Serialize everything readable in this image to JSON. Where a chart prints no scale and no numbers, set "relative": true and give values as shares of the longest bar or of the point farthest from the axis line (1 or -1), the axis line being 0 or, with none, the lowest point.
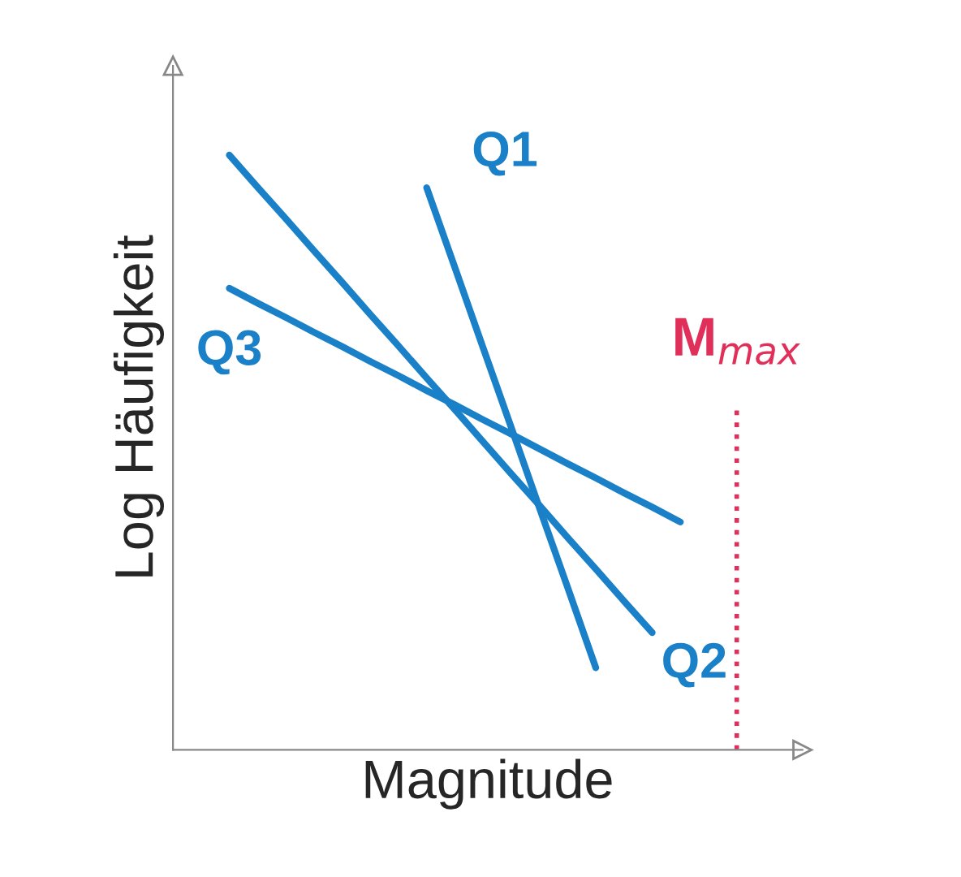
{
  "chart_data": {
    "type": "line",
    "relative": true,
    "xlabel": "Magnitude",
    "ylabel": "Log Häufigkeit",
    "legend": false,
    "tick_labels": false,
    "marker": "none",
    "line_style": "solid",
    "categories": [
      null,
      null,
      null,
      null,
      null,
      null,
      null,
      null,
      null,
      null,
      null,
      null,
      null,
      null,
      null,
      null,
      null,
      null,
      null,
      null,
      null,
      null,
      null
    ],
    "series": [
      {
        "name": "Q1",
        "color": "#1a80c8",
        "values": [
          null,
          null,
          null,
          null,
          null,
          null,
          null,
          null,
          null,
          0.945,
          0.811,
          0.676,
          0.542,
          0.407,
          0.273,
          0.138,
          null,
          null,
          null,
          null,
          null,
          null,
          null
        ]
      },
      {
        "name": "Q2",
        "color": "#1a80c8",
        "values": [
          null,
          null,
          1.0,
          0.946,
          0.893,
          0.839,
          0.786,
          0.732,
          0.679,
          0.625,
          0.572,
          0.518,
          0.464,
          0.411,
          0.357,
          0.304,
          0.25,
          0.197,
          null,
          null,
          null,
          null,
          null
        ]
      },
      {
        "name": "Q3",
        "color": "#1a80c8",
        "values": [
          null,
          null,
          0.776,
          0.751,
          0.727,
          0.702,
          0.678,
          0.653,
          0.629,
          0.604,
          0.58,
          0.555,
          0.531,
          0.506,
          0.481,
          0.457,
          0.432,
          0.408,
          0.383,
          null,
          null,
          null,
          null
        ]
      }
    ],
    "annotations": [
      "M$_{max}$"
    ]
  }
}
